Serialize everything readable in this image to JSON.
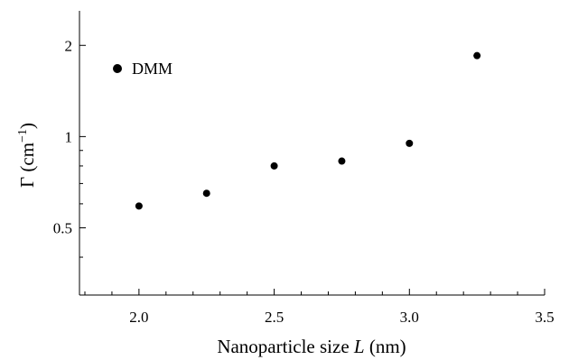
{
  "chart_data": {
    "type": "scatter",
    "xlabel_text": "Nanoparticle size ",
    "xlabel_var": "L",
    "xlabel_unit": " (nm)",
    "ylabel_text": "Γ (cm",
    "ylabel_sup": "−1",
    "ylabel_close": ")",
    "xlim": [
      1.78,
      3.5
    ],
    "ylim": [
      0.3,
      2.6
    ],
    "yscale": "log",
    "x_ticks": [
      {
        "value": 2.0,
        "label": "2.0"
      },
      {
        "value": 2.5,
        "label": "2.5"
      },
      {
        "value": 3.0,
        "label": "3.0"
      },
      {
        "value": 3.5,
        "label": "3.5"
      }
    ],
    "y_ticks": [
      {
        "value": 0.5,
        "label": "0.5"
      },
      {
        "value": 1,
        "label": "1"
      },
      {
        "value": 2,
        "label": "2"
      }
    ],
    "x_minor_ticks": [
      1.8,
      1.9,
      2.1,
      2.2,
      2.3,
      2.4,
      2.6,
      2.7,
      2.8,
      2.9,
      3.1,
      3.2,
      3.3,
      3.4
    ],
    "y_minor_ticks": [
      0.3,
      0.4,
      0.6,
      0.7,
      0.8,
      0.9
    ],
    "series": [
      {
        "name": "DMM",
        "color": "#000000",
        "points": [
          {
            "x": 2.0,
            "y": 0.59
          },
          {
            "x": 2.25,
            "y": 0.65
          },
          {
            "x": 2.5,
            "y": 0.8
          },
          {
            "x": 2.75,
            "y": 0.83
          },
          {
            "x": 3.0,
            "y": 0.95
          },
          {
            "x": 3.25,
            "y": 1.85
          }
        ]
      }
    ],
    "legend_position": "top-left",
    "grid": false
  }
}
